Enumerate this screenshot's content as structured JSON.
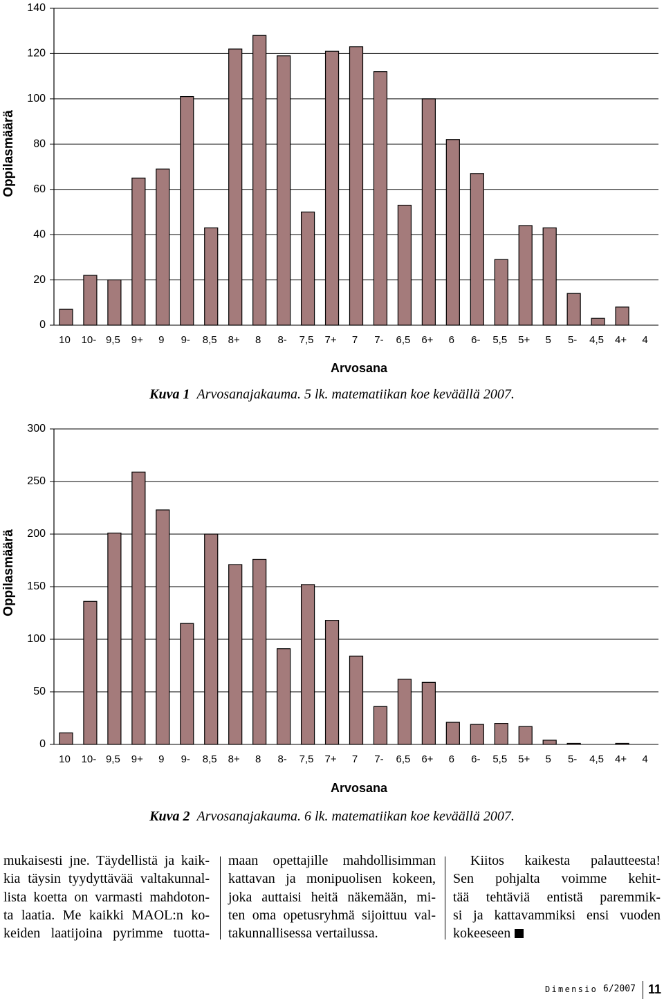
{
  "chart_data": [
    {
      "type": "bar",
      "categories": [
        "10",
        "10-",
        "9,5",
        "9+",
        "9",
        "9-",
        "8,5",
        "8+",
        "8",
        "8-",
        "7,5",
        "7+",
        "7",
        "7-",
        "6,5",
        "6+",
        "6",
        "6-",
        "5,5",
        "5+",
        "5",
        "5-",
        "4,5",
        "4+",
        "4"
      ],
      "values": [
        7,
        22,
        20,
        65,
        69,
        101,
        43,
        122,
        128,
        119,
        50,
        121,
        123,
        112,
        53,
        100,
        82,
        67,
        29,
        44,
        43,
        14,
        3,
        8,
        0
      ],
      "xlabel": "Arvosana",
      "ylabel": "Oppilasmäärä",
      "ylim": [
        0,
        140
      ],
      "yticks": [
        0,
        20,
        40,
        60,
        80,
        100,
        120,
        140
      ],
      "grid": true,
      "legend": "none",
      "bar_color": "#a47b7b",
      "caption": {
        "label": "Kuva 1",
        "text": "Arvosanajakauma. 5 lk. matematiikan koe keväällä 2007."
      }
    },
    {
      "type": "bar",
      "categories": [
        "10",
        "10-",
        "9,5",
        "9+",
        "9",
        "9-",
        "8,5",
        "8+",
        "8",
        "8-",
        "7,5",
        "7+",
        "7",
        "7-",
        "6,5",
        "6+",
        "6",
        "6-",
        "5,5",
        "5+",
        "5",
        "5-",
        "4,5",
        "4+",
        "4"
      ],
      "values": [
        11,
        136,
        201,
        259,
        223,
        115,
        200,
        171,
        176,
        91,
        152,
        118,
        84,
        36,
        62,
        59,
        21,
        19,
        20,
        17,
        4,
        1,
        0,
        1,
        0
      ],
      "xlabel": "Arvosana",
      "ylabel": "Oppilasmäärä",
      "ylim": [
        0,
        300
      ],
      "yticks": [
        0,
        50,
        100,
        150,
        200,
        250,
        300
      ],
      "grid": true,
      "legend": "none",
      "bar_color": "#a47b7b",
      "caption": {
        "label": "Kuva 2",
        "text": "Arvosanajakauma. 6 lk. matematiikan koe keväällä 2007."
      }
    }
  ],
  "article": {
    "columns": [
      {
        "lines": [
          "mukaisesti jne. Täydellistä ja kaik-",
          "kia täysin tyydyttävää valtakunnal-",
          "lista koetta on varmasti mahdoton-",
          "ta laatia. Me kaikki MAOL:n ko-",
          "keiden laatijoina pyrimme tuotta-"
        ]
      },
      {
        "lines": [
          "maan opettajille mahdollisimman",
          "kattavan ja monipuolisen kokeen,",
          "joka auttaisi heitä näkemään, mi-",
          "ten oma opetusryhmä sijoittuu val-",
          "takunnallisessa vertailussa."
        ]
      },
      {
        "lines": [
          "Kiitos kaikesta palautteesta!",
          "Sen pohjalta voimme kehit-",
          "tää tehtäviä entistä paremmik-",
          "si ja kattavammiksi ensi vuoden",
          "kokeeseen"
        ]
      }
    ],
    "end_mark_icon": "black-square-icon"
  },
  "footer": {
    "magazine": "Dimensio",
    "issue": "6/2007",
    "page": "11"
  }
}
